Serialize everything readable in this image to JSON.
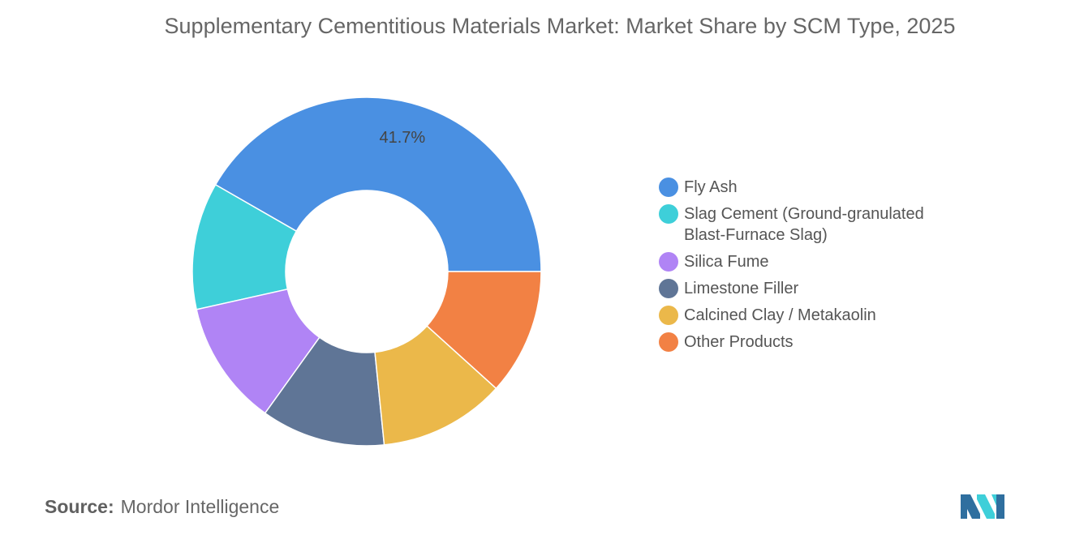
{
  "title": "Supplementary Cementitious Materials Market: Market Share by SCM Type, 2025",
  "source": {
    "label": "Source:",
    "text": "Mordor Intelligence"
  },
  "chart_data": {
    "type": "pie",
    "donut": true,
    "categories": [
      "Fly Ash",
      "Slag Cement (Ground-granulated Blast-Furnace Slag)",
      "Silica Fume",
      "Limestone Filler",
      "Calcined Clay / Metakaolin",
      "Other Products"
    ],
    "values": [
      41.7,
      11.8,
      11.6,
      11.5,
      11.7,
      11.7
    ],
    "data_labels": [
      "41.7%",
      "",
      "",
      "",
      "",
      ""
    ],
    "colors": [
      "#4a90e2",
      "#3ecfd9",
      "#b084f5",
      "#5f7596",
      "#ebb84a",
      "#f28144"
    ],
    "legend_position": "right",
    "start_angle_deg": 0,
    "direction": "counterclockwise-from-east",
    "grid": false
  }
}
